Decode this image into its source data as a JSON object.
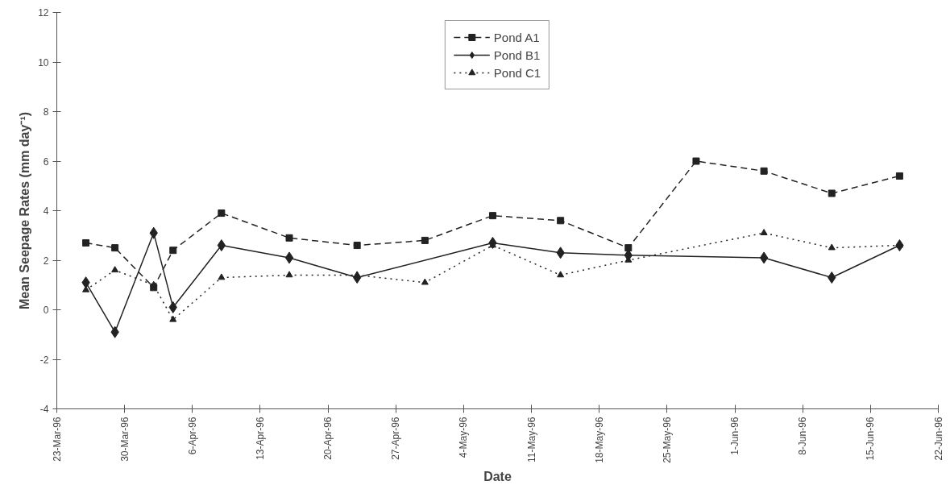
{
  "chart_data": {
    "type": "line",
    "xlabel": "Date",
    "ylabel": "Mean Seepage Rates (mm day⁻¹)",
    "xlim": [
      "1996-03-23",
      "1996-06-22"
    ],
    "xticks": [
      {
        "value": "1996-03-23",
        "label": "23-Mar-96"
      },
      {
        "value": "1996-03-30",
        "label": "30-Mar-96"
      },
      {
        "value": "1996-04-06",
        "label": "6-Apr-96"
      },
      {
        "value": "1996-04-13",
        "label": "13-Apr-96"
      },
      {
        "value": "1996-04-20",
        "label": "20-Apr-96"
      },
      {
        "value": "1996-04-27",
        "label": "27-Apr-96"
      },
      {
        "value": "1996-05-04",
        "label": "4-May-96"
      },
      {
        "value": "1996-05-11",
        "label": "11-May-96"
      },
      {
        "value": "1996-05-18",
        "label": "18-May-96"
      },
      {
        "value": "1996-05-25",
        "label": "25-May-96"
      },
      {
        "value": "1996-06-01",
        "label": "1-Jun-96"
      },
      {
        "value": "1996-06-08",
        "label": "8-Jun-96"
      },
      {
        "value": "1996-06-15",
        "label": "15-Jun-96"
      },
      {
        "value": "1996-06-22",
        "label": "22-Jun-96"
      }
    ],
    "ylim": [
      -4,
      12
    ],
    "yticks": [
      -4,
      -2,
      0,
      2,
      4,
      6,
      8,
      10,
      12
    ],
    "grid": false,
    "legend": "top",
    "series": [
      {
        "name": "Pond A1",
        "color": "#222222",
        "marker": "square",
        "line_style": "dashed",
        "x": [
          "1996-03-26",
          "1996-03-29",
          "1996-04-02",
          "1996-04-04",
          "1996-04-09",
          "1996-04-16",
          "1996-04-23",
          "1996-04-30",
          "1996-05-07",
          "1996-05-14",
          "1996-05-21",
          "1996-05-28",
          "1996-06-04",
          "1996-06-11",
          "1996-06-18"
        ],
        "values": [
          2.7,
          2.5,
          0.9,
          2.4,
          3.9,
          2.9,
          2.6,
          2.8,
          3.8,
          3.6,
          2.5,
          6.0,
          5.6,
          4.7,
          5.4
        ]
      },
      {
        "name": "Pond B1",
        "color": "#222222",
        "marker": "diamond",
        "line_style": "solid",
        "x": [
          "1996-03-26",
          "1996-03-29",
          "1996-04-02",
          "1996-04-04",
          "1996-04-09",
          "1996-04-16",
          "1996-04-23",
          "1996-05-07",
          "1996-05-14",
          "1996-05-21",
          "1996-06-04",
          "1996-06-11",
          "1996-06-18"
        ],
        "values": [
          1.1,
          -0.9,
          3.1,
          0.1,
          2.6,
          2.1,
          1.3,
          2.7,
          2.3,
          2.2,
          2.1,
          1.3,
          2.6
        ]
      },
      {
        "name": "Pond C1",
        "color": "#222222",
        "marker": "triangle",
        "line_style": "dotted",
        "x": [
          "1996-03-26",
          "1996-03-29",
          "1996-04-02",
          "1996-04-04",
          "1996-04-09",
          "1996-04-16",
          "1996-04-23",
          "1996-04-30",
          "1996-05-07",
          "1996-05-14",
          "1996-05-21",
          "1996-06-04",
          "1996-06-11",
          "1996-06-18"
        ],
        "values": [
          0.8,
          1.6,
          1.0,
          -0.4,
          1.3,
          1.4,
          1.4,
          1.1,
          2.6,
          1.4,
          2.0,
          3.1,
          2.5,
          2.6
        ]
      }
    ]
  }
}
